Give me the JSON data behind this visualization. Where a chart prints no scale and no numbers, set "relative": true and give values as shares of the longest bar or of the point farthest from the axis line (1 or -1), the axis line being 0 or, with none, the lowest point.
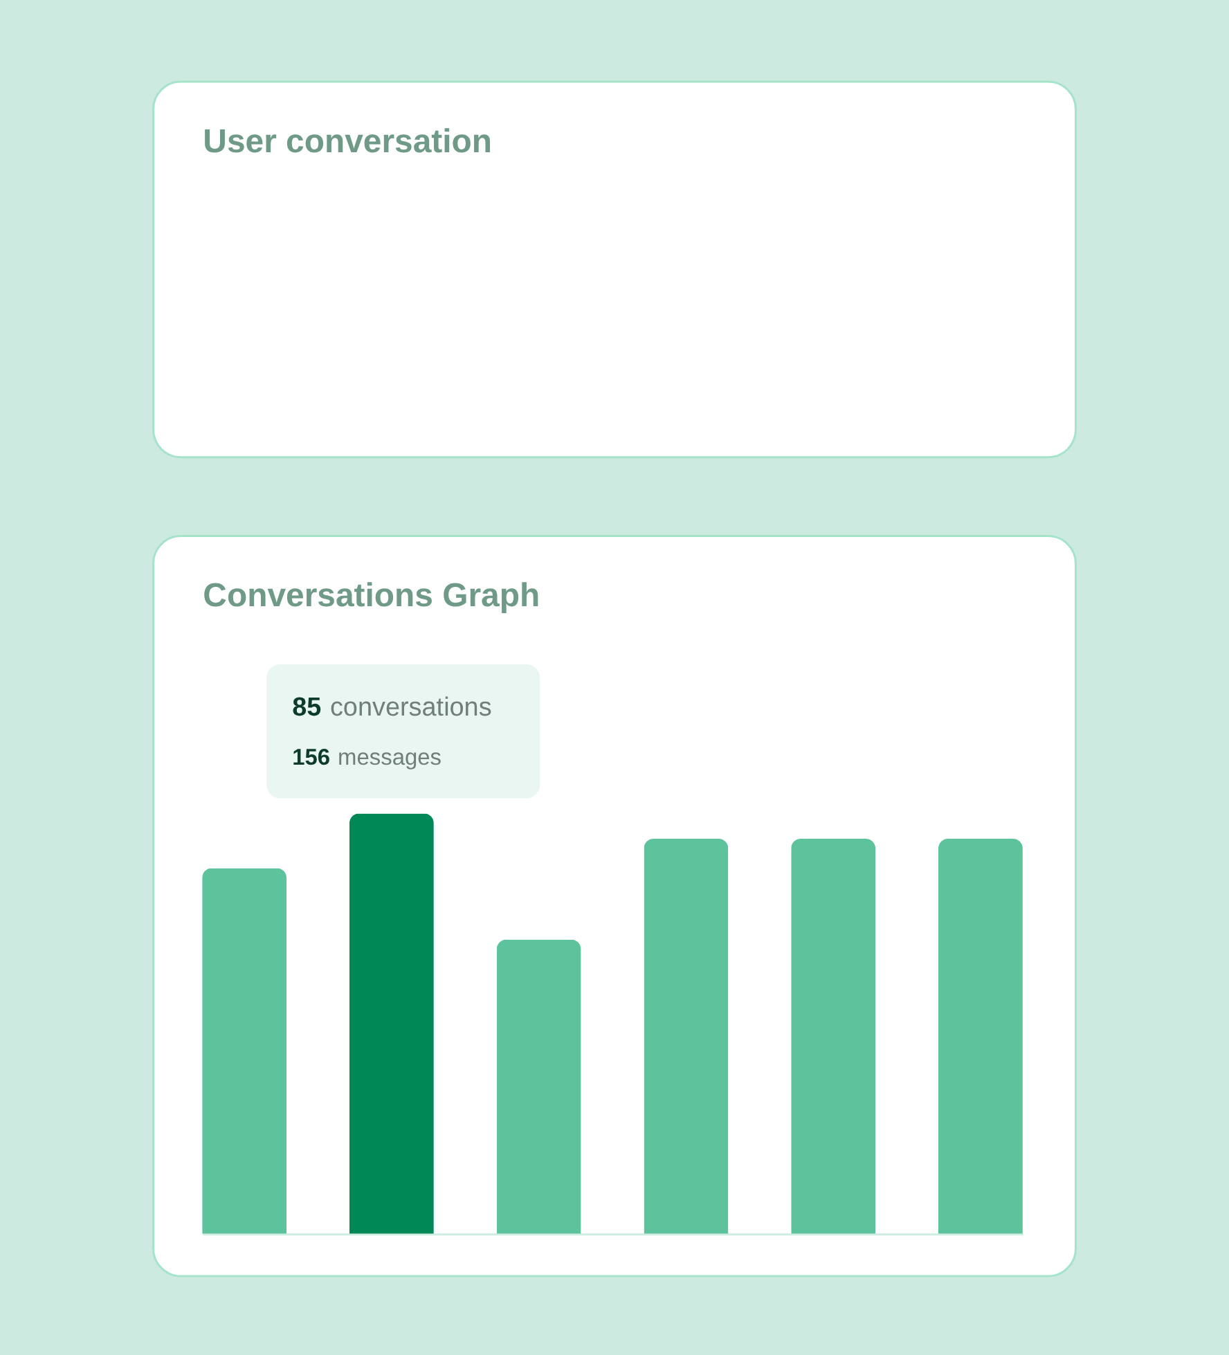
{
  "chart_data": [
    {
      "type": "other",
      "title": "User conversation"
    },
    {
      "type": "bar",
      "title": "Conversations Graph",
      "categories": [
        null,
        null,
        null,
        null,
        null,
        null
      ],
      "values": [
        0.87,
        1,
        0.7,
        0.94,
        0.94,
        0.94
      ],
      "colors": [
        "#5cc39d",
        "#008857",
        "#5cc39d",
        "#5cc39d",
        "#5cc39d",
        "#5cc39d"
      ],
      "relative": true,
      "annotations": [
        "85 conversations",
        "156 messages"
      ]
    }
  ]
}
